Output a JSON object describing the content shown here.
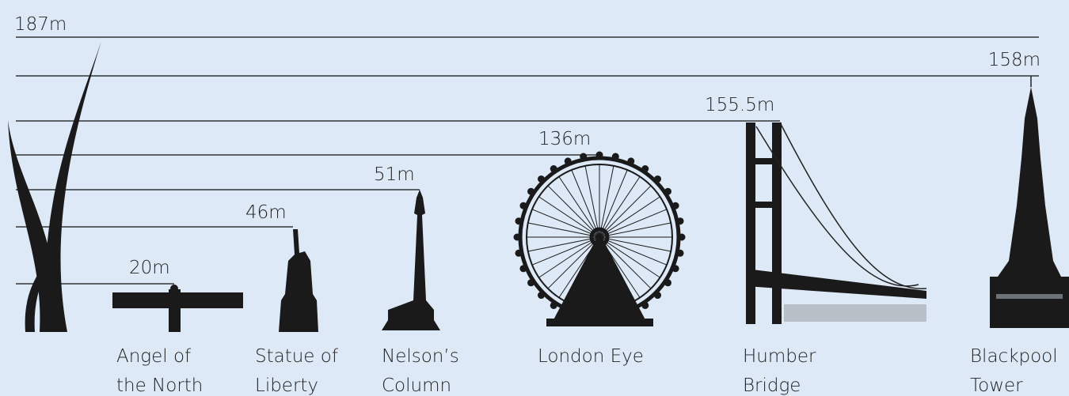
{
  "items": [
    {
      "height": "187m"
    },
    {
      "height": "20m",
      "name": [
        "Angel of",
        "the North"
      ]
    },
    {
      "height": "46m",
      "name": [
        "Statue of",
        "Liberty"
      ]
    },
    {
      "height": "51m",
      "name": [
        "Nelson’s",
        "Column"
      ]
    },
    {
      "height": "136m",
      "name": [
        "London Eye"
      ]
    },
    {
      "height": "155.5m",
      "name": [
        "Humber",
        "Bridge"
      ]
    },
    {
      "height": "158m",
      "name": [
        "Blackpool",
        "Tower"
      ]
    }
  ]
}
